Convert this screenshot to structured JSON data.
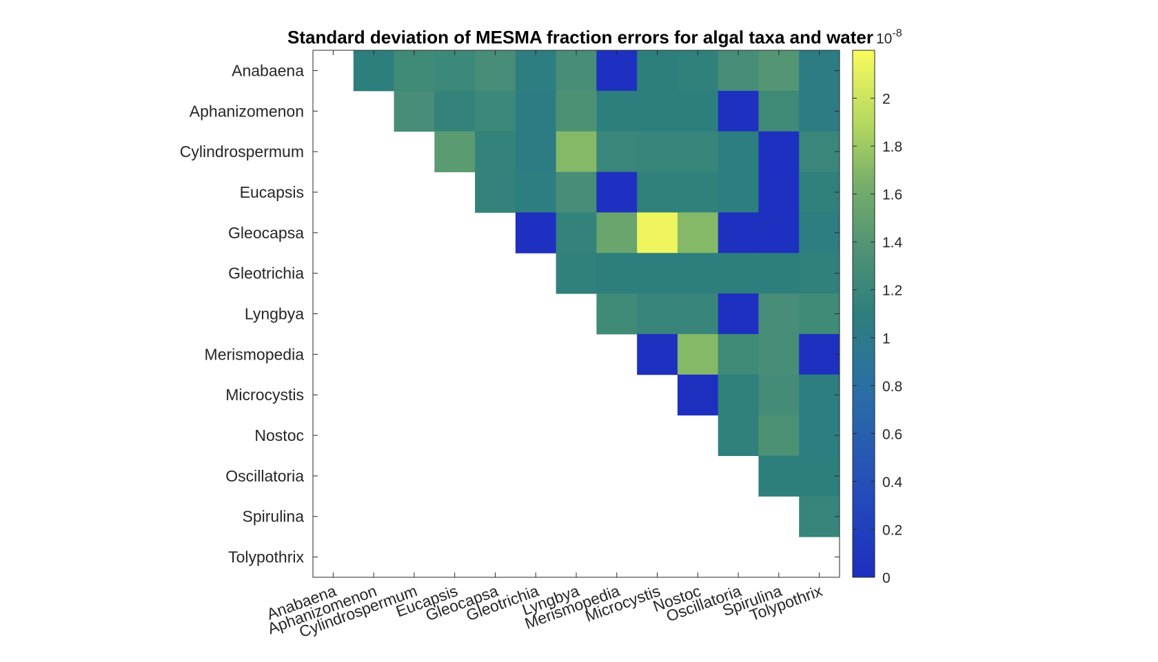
{
  "chart_data": {
    "type": "heatmap",
    "title": "Standard deviation of MESMA fraction errors for algal taxa and water",
    "xlabel": "",
    "ylabel": "",
    "categories": [
      "Anabaena",
      "Aphanizomenon",
      "Cylindrospermum",
      "Eucapsis",
      "Gleocapsa",
      "Gleotrichia",
      "Lyngbya",
      "Merismopedia",
      "Microcystis",
      "Nostoc",
      "Oscillatoria",
      "Spirulina",
      "Tolypothrix"
    ],
    "matrix_scale": 1e-08,
    "matrix": [
      [
        null,
        1.1,
        1.25,
        1.22,
        1.3,
        1.08,
        1.3,
        0.02,
        1.1,
        1.12,
        1.3,
        1.4,
        1.05
      ],
      [
        null,
        null,
        1.3,
        1.15,
        1.22,
        1.05,
        1.35,
        1.1,
        1.1,
        1.1,
        0.02,
        1.25,
        1.05
      ],
      [
        null,
        null,
        null,
        1.45,
        1.15,
        1.05,
        1.7,
        1.2,
        1.18,
        1.18,
        1.08,
        0.02,
        1.2
      ],
      [
        null,
        null,
        null,
        null,
        1.15,
        1.08,
        1.3,
        0.02,
        1.12,
        1.12,
        1.08,
        0.02,
        1.12
      ],
      [
        null,
        null,
        null,
        null,
        null,
        0.02,
        1.15,
        1.55,
        2.15,
        1.7,
        0.02,
        0.02,
        1.08
      ],
      [
        null,
        null,
        null,
        null,
        null,
        null,
        1.12,
        1.1,
        1.1,
        1.1,
        1.1,
        1.1,
        1.12
      ],
      [
        null,
        null,
        null,
        null,
        null,
        null,
        null,
        1.25,
        1.18,
        1.18,
        0.02,
        1.3,
        1.25
      ],
      [
        null,
        null,
        null,
        null,
        null,
        null,
        null,
        null,
        0.02,
        1.7,
        1.25,
        1.3,
        0.02
      ],
      [
        null,
        null,
        null,
        null,
        null,
        null,
        null,
        null,
        null,
        0.02,
        1.12,
        1.28,
        1.08
      ],
      [
        null,
        null,
        null,
        null,
        null,
        null,
        null,
        null,
        null,
        null,
        1.12,
        1.35,
        1.08
      ],
      [
        null,
        null,
        null,
        null,
        null,
        null,
        null,
        null,
        null,
        null,
        null,
        1.1,
        1.1
      ],
      [
        null,
        null,
        null,
        null,
        null,
        null,
        null,
        null,
        null,
        null,
        null,
        null,
        1.18
      ],
      [
        null,
        null,
        null,
        null,
        null,
        null,
        null,
        null,
        null,
        null,
        null,
        null,
        null
      ]
    ],
    "colorbar": {
      "range": [
        0,
        2.2
      ],
      "ticks": [
        "0",
        "0.2",
        "0.4",
        "0.6",
        "0.8",
        "1",
        "1.2",
        "1.4",
        "1.6",
        "1.8",
        "2"
      ],
      "exponent_label": "10",
      "exponent_sup": "-8",
      "colormap": "parula"
    },
    "colors": {
      "low": "#1e2ec0",
      "mid": "#2d7f7d",
      "high": "#f9fb5e"
    }
  }
}
